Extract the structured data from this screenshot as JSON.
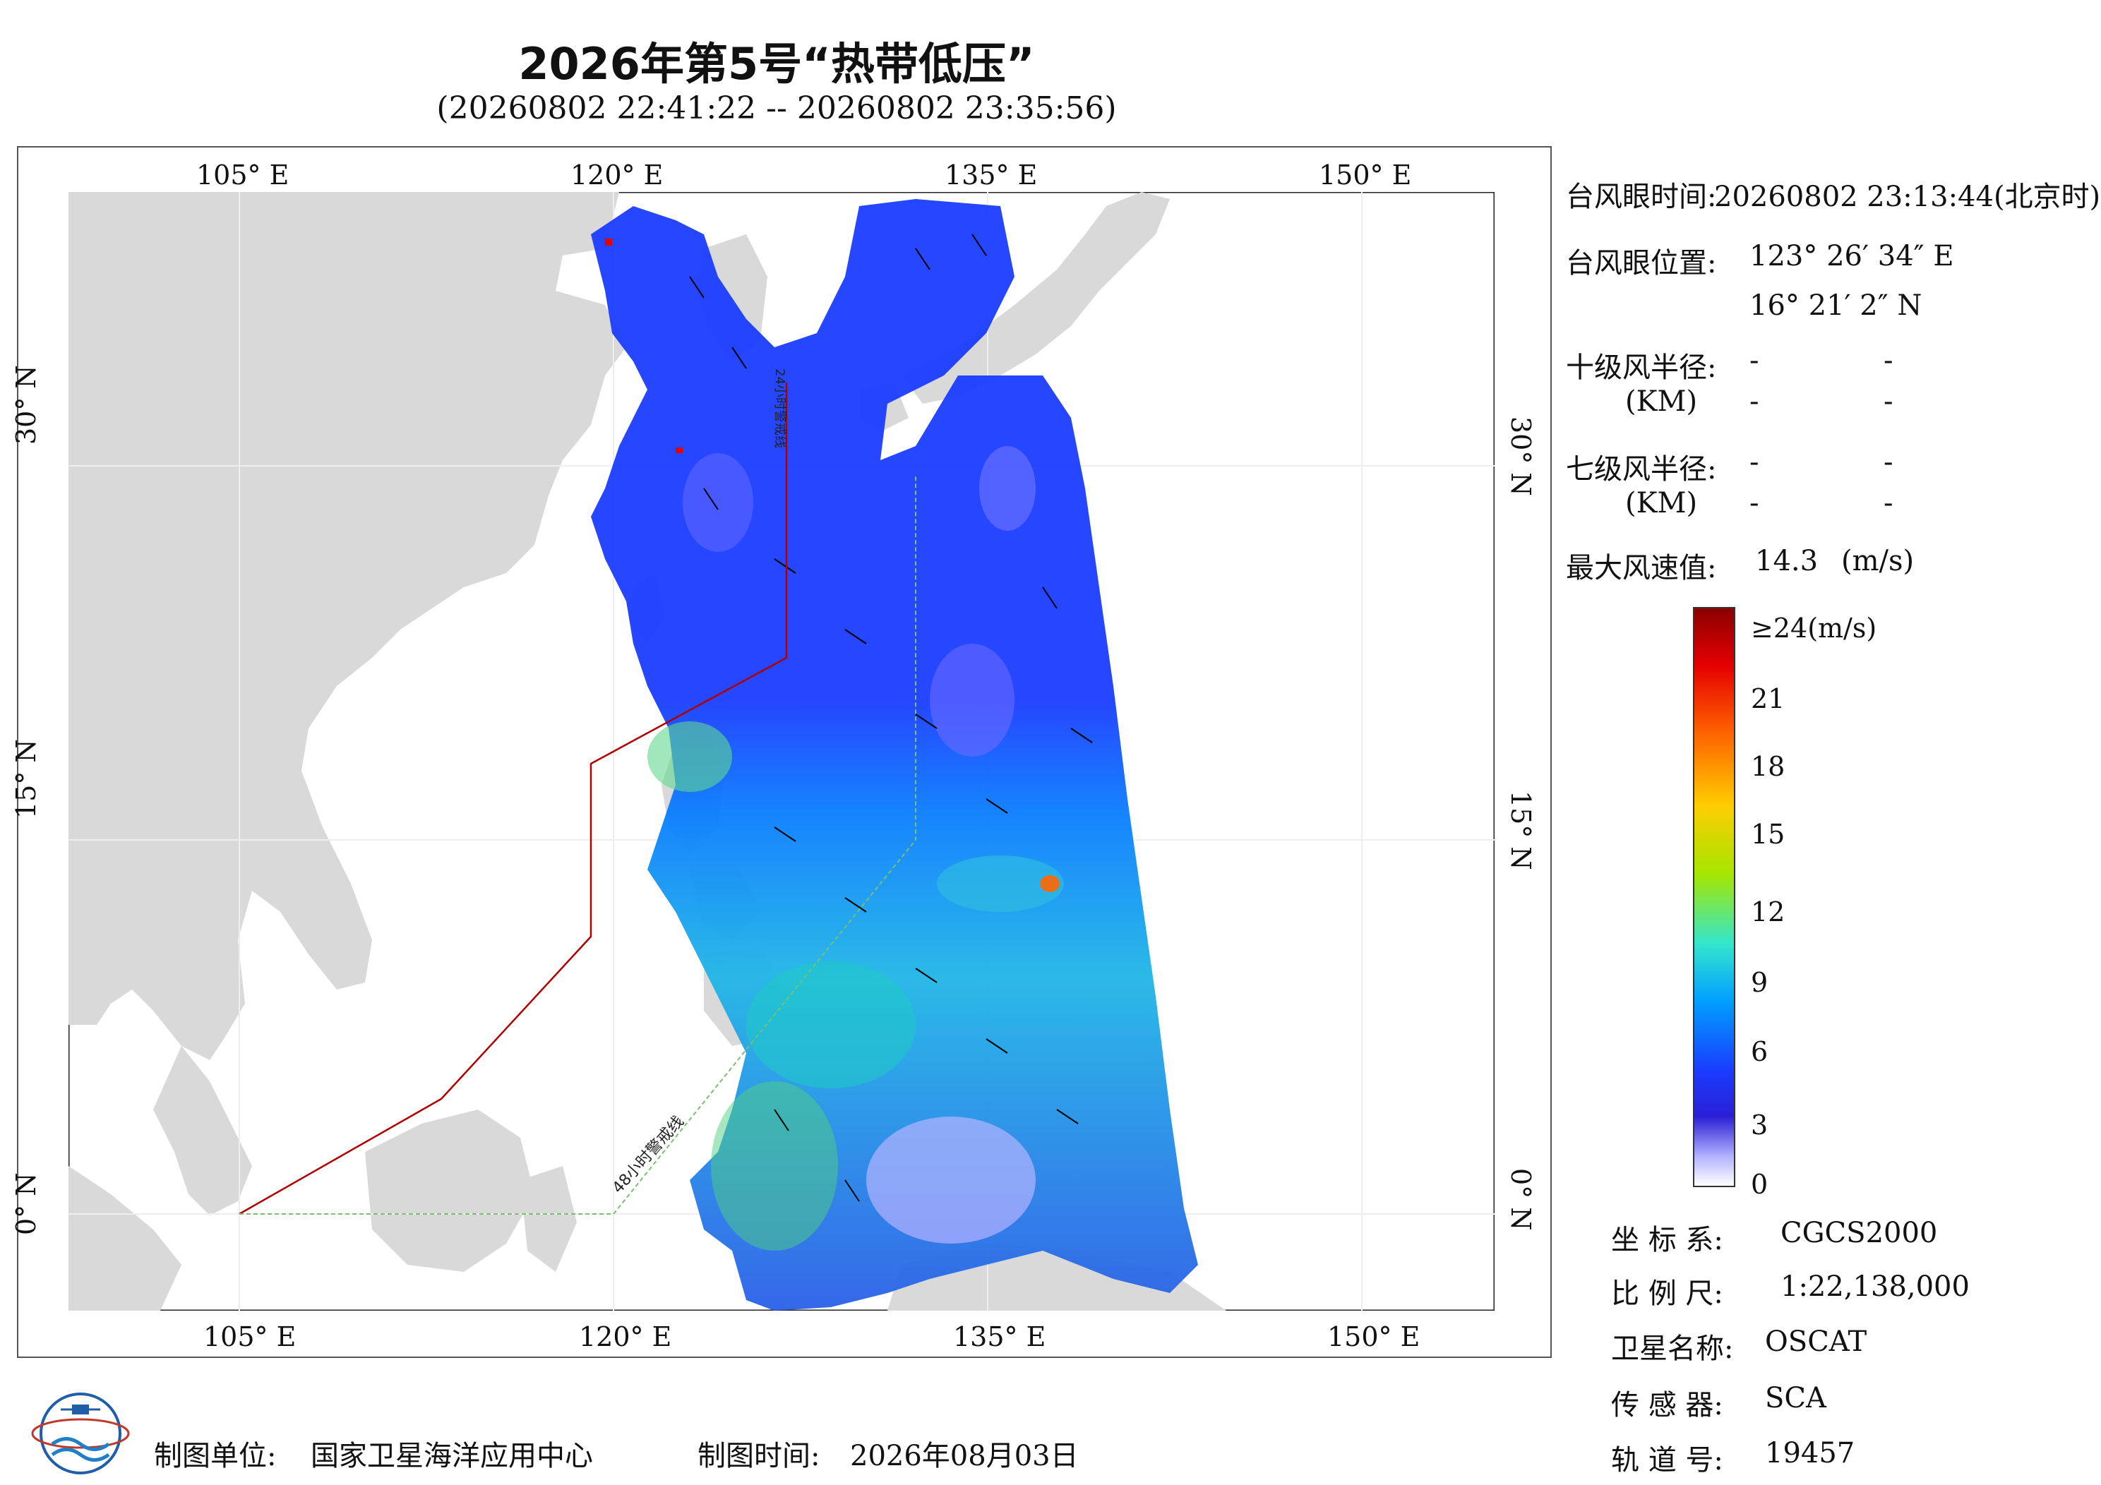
{
  "title": "2026年第5号“热带低压”",
  "subtitle": "(20260802 22:41:22 -- 20260802 23:35:56)",
  "axes": {
    "lon_labels_top": [
      "105° E",
      "120° E",
      "135° E",
      "150° E"
    ],
    "lon_labels_bottom": [
      "105° E",
      "120° E",
      "135° E",
      "150° E"
    ],
    "lat_labels_left": [
      "30° N",
      "15° N",
      "0° N"
    ],
    "lat_labels_right": [
      "30° N",
      "15° N",
      "0° N"
    ]
  },
  "map_annotations": {
    "warning_line_48h": "48小时警戒线",
    "warning_line_24h": "24小时警戒线"
  },
  "info": {
    "eye_time_label": "台风眼时间:",
    "eye_time_value": "20260802 23:13:44(北京时)",
    "eye_pos_label": "台风眼位置:",
    "eye_lon": "123° 26′ 34″ E",
    "eye_lat": "16° 21′ 2″ N",
    "r10_label": "十级风半径:",
    "r7_label": "七级风半径:",
    "km_label": "(KM)",
    "dash": "-",
    "max_wind_label": "最大风速值:",
    "max_wind_value": "14.3",
    "max_wind_unit": "(m/s)"
  },
  "colorbar": {
    "labels": [
      "≥24(m/s)",
      "21",
      "18",
      "15",
      "12",
      "9",
      "6",
      "3",
      "0"
    ],
    "colors": [
      "#8b0000",
      "#e60000",
      "#ff6600",
      "#ffcc00",
      "#a6e600",
      "#33e6cc",
      "#00a0ff",
      "#1a3cff",
      "#2a1fd6",
      "#b3b3ff",
      "#ffffff"
    ]
  },
  "meta": {
    "crs_label": "坐 标 系:",
    "crs_value": "CGCS2000",
    "scale_label": "比 例 尺:",
    "scale_value": "1:22,138,000",
    "sat_label": "卫星名称:",
    "sat_value": "OSCAT",
    "sensor_label": "传 感 器:",
    "sensor_value": "SCA",
    "orbit_label": "轨 道 号:",
    "orbit_value": "19457"
  },
  "footer": {
    "unit_label": "制图单位:",
    "unit_value": "国家卫星海洋应用中心",
    "time_label": "制图时间:",
    "time_value": "2026年08月03日"
  }
}
